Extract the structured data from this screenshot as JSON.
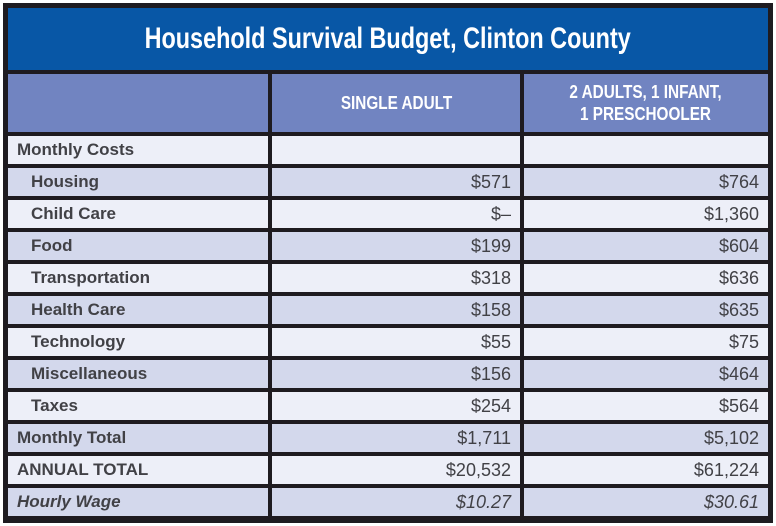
{
  "colors": {
    "title-bg": "#0857A6",
    "header-bg": "#7184C1",
    "row-light": "#EDEFF8",
    "row-dark": "#D3D8EC",
    "border": "#1E1B20",
    "text": "#414146",
    "header-text": "#FFFFFF"
  },
  "chart_data": {
    "type": "table",
    "title": "Household Survival Budget, Clinton County",
    "columns": [
      "",
      "SINGLE ADULT",
      "2 ADULTS, 1 INFANT, 1 PRESCHOOLER"
    ],
    "header": {
      "single": "SINGLE ADULT",
      "family_line1": "2 ADULTS, 1 INFANT,",
      "family_line2": "1 PRESCHOOLER"
    },
    "rows": [
      {
        "label": "Monthly Costs",
        "single": "",
        "family": "",
        "type": "section"
      },
      {
        "label": "Housing",
        "single": "$571",
        "family": "$764",
        "type": "item"
      },
      {
        "label": "Child Care",
        "single": "$–",
        "family": "$1,360",
        "type": "item"
      },
      {
        "label": "Food",
        "single": "$199",
        "family": "$604",
        "type": "item"
      },
      {
        "label": "Transportation",
        "single": "$318",
        "family": "$636",
        "type": "item"
      },
      {
        "label": "Health Care",
        "single": "$158",
        "family": "$635",
        "type": "item"
      },
      {
        "label": "Technology",
        "single": "$55",
        "family": "$75",
        "type": "item"
      },
      {
        "label": "Miscellaneous",
        "single": "$156",
        "family": "$464",
        "type": "item"
      },
      {
        "label": "Taxes",
        "single": "$254",
        "family": "$564",
        "type": "item"
      },
      {
        "label": "Monthly Total",
        "single": "$1,711",
        "family": "$5,102",
        "type": "total"
      },
      {
        "label": "ANNUAL TOTAL",
        "single": "$20,532",
        "family": "$61,224",
        "type": "total"
      },
      {
        "label": "Hourly Wage",
        "single": "$10.27",
        "family": "$30.61",
        "type": "wage"
      }
    ]
  }
}
